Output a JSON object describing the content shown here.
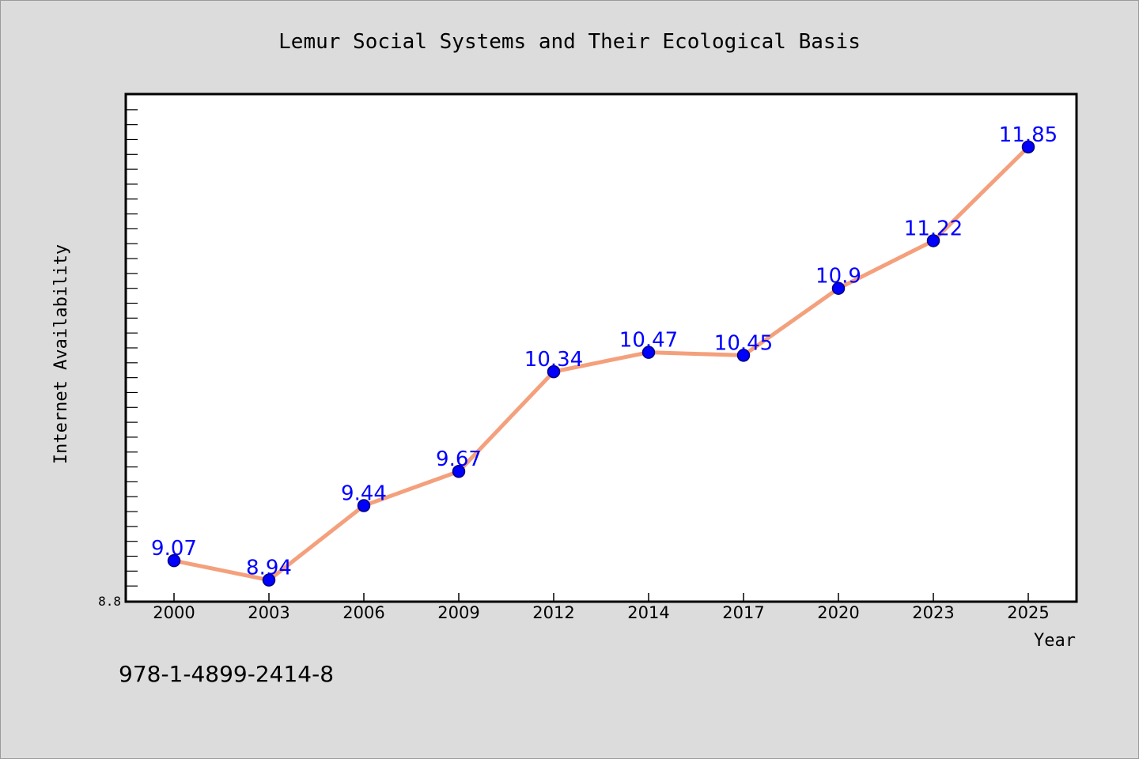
{
  "chart_data": {
    "type": "line",
    "title": "Lemur Social Systems and Their Ecological Basis",
    "xlabel": "Year",
    "ylabel": "Internet Availability",
    "categories": [
      "2000",
      "2003",
      "2006",
      "2009",
      "2012",
      "2014",
      "2017",
      "2020",
      "2023",
      "2025"
    ],
    "series": [
      {
        "values": [
          9.07,
          8.94,
          9.44,
          9.67,
          10.34,
          10.47,
          10.45,
          10.9,
          11.22,
          11.85
        ],
        "labels": [
          "9.07",
          "8.94",
          "9.44",
          "9.67",
          "10.34",
          "10.47",
          "10.45",
          "10.9",
          "11.22",
          "11.85"
        ]
      }
    ],
    "ylim": [
      8.8,
      12.2
    ],
    "y_tick_labels": [
      "8.8"
    ],
    "grid": false,
    "colors": {
      "line": "#f4a07c",
      "marker": "#0000ff",
      "data_label": "#0000ff",
      "background": "#dcdcdc",
      "plot_background": "#ffffff"
    }
  },
  "footer": {
    "isbn": "978-1-4899-2414-8"
  }
}
